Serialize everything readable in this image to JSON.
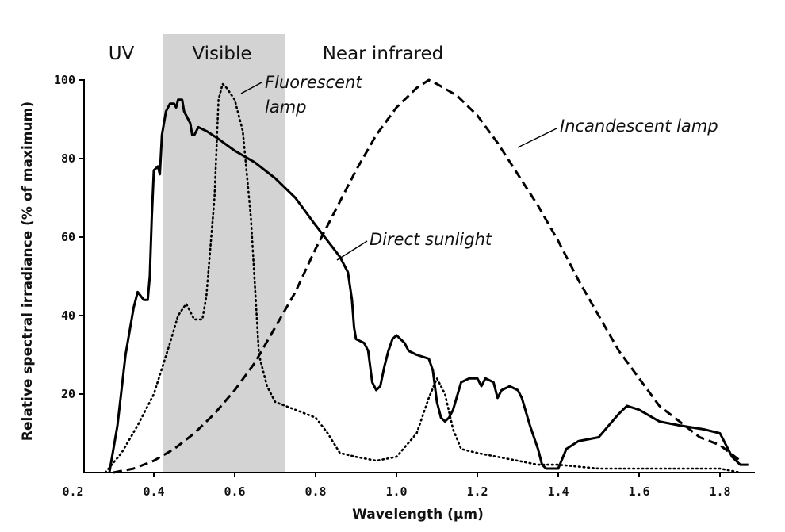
{
  "chart_data": {
    "type": "line",
    "title": "",
    "xlabel": "Wavelength (µm)",
    "ylabel": "Relative spectral irradiance (% of maximum)",
    "xlim": [
      0.2,
      1.87
    ],
    "ylim": [
      0,
      102
    ],
    "x_ticks": [
      0.2,
      0.4,
      0.6,
      0.8,
      1.0,
      1.2,
      1.4,
      1.6,
      1.8
    ],
    "x_tick_labels": [
      "0.2",
      "0.4",
      "0.6",
      "0.8",
      "1.0",
      "1.2",
      "1.4",
      "1.6",
      "1.8"
    ],
    "y_ticks": [
      20,
      40,
      60,
      80,
      100
    ],
    "y_tick_labels": [
      "20",
      "40",
      "60",
      "80",
      "100"
    ],
    "grid": false,
    "legend": "none (series labeled directly on curves)",
    "regions": [
      {
        "label": "UV",
        "x_range": [
          0.2,
          0.4
        ],
        "shaded": false
      },
      {
        "label": "Visible",
        "x_range": [
          0.4,
          0.7
        ],
        "shaded": true,
        "color": "#d3d3d3"
      },
      {
        "label": "Near infrared",
        "x_range": [
          0.7,
          1.87
        ],
        "shaded": false
      }
    ],
    "series": [
      {
        "name": "Direct sunlight",
        "style": "solid",
        "color": "#000000",
        "points": [
          [
            0.29,
            0
          ],
          [
            0.31,
            12
          ],
          [
            0.33,
            30
          ],
          [
            0.35,
            42
          ],
          [
            0.36,
            46
          ],
          [
            0.375,
            44
          ],
          [
            0.385,
            44
          ],
          [
            0.39,
            50
          ],
          [
            0.395,
            65
          ],
          [
            0.4,
            77
          ],
          [
            0.41,
            78
          ],
          [
            0.415,
            76
          ],
          [
            0.42,
            86
          ],
          [
            0.43,
            92
          ],
          [
            0.44,
            94
          ],
          [
            0.45,
            94
          ],
          [
            0.455,
            93
          ],
          [
            0.46,
            95
          ],
          [
            0.47,
            95
          ],
          [
            0.475,
            92
          ],
          [
            0.48,
            91
          ],
          [
            0.49,
            89
          ],
          [
            0.495,
            86
          ],
          [
            0.5,
            86
          ],
          [
            0.51,
            88
          ],
          [
            0.53,
            87
          ],
          [
            0.56,
            85
          ],
          [
            0.6,
            82
          ],
          [
            0.65,
            79
          ],
          [
            0.7,
            75
          ],
          [
            0.75,
            70
          ],
          [
            0.8,
            63
          ],
          [
            0.83,
            59
          ],
          [
            0.86,
            55
          ],
          [
            0.88,
            51
          ],
          [
            0.89,
            44
          ],
          [
            0.895,
            37
          ],
          [
            0.9,
            34
          ],
          [
            0.92,
            33
          ],
          [
            0.93,
            31
          ],
          [
            0.94,
            23
          ],
          [
            0.95,
            21
          ],
          [
            0.96,
            22
          ],
          [
            0.97,
            27
          ],
          [
            0.98,
            31
          ],
          [
            0.99,
            34
          ],
          [
            1.0,
            35
          ],
          [
            1.02,
            33
          ],
          [
            1.03,
            31
          ],
          [
            1.05,
            30
          ],
          [
            1.08,
            29
          ],
          [
            1.09,
            26
          ],
          [
            1.1,
            18
          ],
          [
            1.11,
            14
          ],
          [
            1.12,
            13
          ],
          [
            1.13,
            14
          ],
          [
            1.14,
            16
          ],
          [
            1.16,
            23
          ],
          [
            1.18,
            24
          ],
          [
            1.2,
            24
          ],
          [
            1.21,
            22
          ],
          [
            1.22,
            24
          ],
          [
            1.24,
            23
          ],
          [
            1.25,
            19
          ],
          [
            1.26,
            21
          ],
          [
            1.28,
            22
          ],
          [
            1.3,
            21
          ],
          [
            1.31,
            19
          ],
          [
            1.33,
            12
          ],
          [
            1.35,
            6
          ],
          [
            1.36,
            2
          ],
          [
            1.37,
            1
          ],
          [
            1.4,
            1
          ],
          [
            1.42,
            6
          ],
          [
            1.45,
            8
          ],
          [
            1.5,
            9
          ],
          [
            1.55,
            15
          ],
          [
            1.57,
            17
          ],
          [
            1.6,
            16
          ],
          [
            1.65,
            13
          ],
          [
            1.7,
            12
          ],
          [
            1.76,
            11
          ],
          [
            1.8,
            10
          ],
          [
            1.81,
            8
          ],
          [
            1.83,
            4
          ],
          [
            1.85,
            2
          ],
          [
            1.87,
            2
          ]
        ]
      },
      {
        "name": "Fluorescent lamp",
        "style": "dotted",
        "color": "#000000",
        "points": [
          [
            0.28,
            0
          ],
          [
            0.32,
            5
          ],
          [
            0.36,
            12
          ],
          [
            0.4,
            20
          ],
          [
            0.44,
            33
          ],
          [
            0.46,
            40
          ],
          [
            0.48,
            43
          ],
          [
            0.5,
            39
          ],
          [
            0.52,
            39
          ],
          [
            0.53,
            45
          ],
          [
            0.55,
            70
          ],
          [
            0.56,
            95
          ],
          [
            0.57,
            99
          ],
          [
            0.58,
            98
          ],
          [
            0.6,
            95
          ],
          [
            0.62,
            87
          ],
          [
            0.64,
            65
          ],
          [
            0.66,
            30
          ],
          [
            0.68,
            22
          ],
          [
            0.7,
            18
          ],
          [
            0.75,
            16
          ],
          [
            0.8,
            14
          ],
          [
            0.83,
            10
          ],
          [
            0.86,
            5
          ],
          [
            0.9,
            4
          ],
          [
            0.95,
            3
          ],
          [
            1.0,
            4
          ],
          [
            1.05,
            10
          ],
          [
            1.08,
            19
          ],
          [
            1.1,
            24
          ],
          [
            1.12,
            20
          ],
          [
            1.14,
            11
          ],
          [
            1.16,
            6
          ],
          [
            1.2,
            5
          ],
          [
            1.25,
            4
          ],
          [
            1.3,
            3
          ],
          [
            1.35,
            2
          ],
          [
            1.4,
            2
          ],
          [
            1.5,
            1
          ],
          [
            1.6,
            1
          ],
          [
            1.7,
            1
          ],
          [
            1.8,
            1
          ],
          [
            1.85,
            0
          ]
        ]
      },
      {
        "name": "Incandescent lamp",
        "style": "dashed",
        "color": "#000000",
        "points": [
          [
            0.3,
            0
          ],
          [
            0.35,
            1
          ],
          [
            0.4,
            3
          ],
          [
            0.45,
            6
          ],
          [
            0.5,
            10
          ],
          [
            0.55,
            15
          ],
          [
            0.6,
            21
          ],
          [
            0.65,
            28
          ],
          [
            0.7,
            37
          ],
          [
            0.75,
            46
          ],
          [
            0.8,
            57
          ],
          [
            0.85,
            67
          ],
          [
            0.9,
            77
          ],
          [
            0.95,
            86
          ],
          [
            1.0,
            93
          ],
          [
            1.05,
            98
          ],
          [
            1.08,
            100
          ],
          [
            1.1,
            99
          ],
          [
            1.15,
            96
          ],
          [
            1.2,
            91
          ],
          [
            1.25,
            84
          ],
          [
            1.3,
            76
          ],
          [
            1.35,
            68
          ],
          [
            1.4,
            59
          ],
          [
            1.45,
            49
          ],
          [
            1.5,
            40
          ],
          [
            1.55,
            31
          ],
          [
            1.6,
            24
          ],
          [
            1.65,
            17
          ],
          [
            1.7,
            13
          ],
          [
            1.75,
            9
          ],
          [
            1.8,
            7
          ],
          [
            1.85,
            3
          ]
        ]
      }
    ],
    "annotations": [
      {
        "series": "Fluorescent lamp",
        "text_lines": [
          "Fluorescent",
          "lamp"
        ]
      },
      {
        "series": "Incandescent lamp",
        "text_lines": [
          "Incandescent lamp"
        ]
      },
      {
        "series": "Direct sunlight",
        "text_lines": [
          "Direct sunlight"
        ]
      }
    ]
  }
}
